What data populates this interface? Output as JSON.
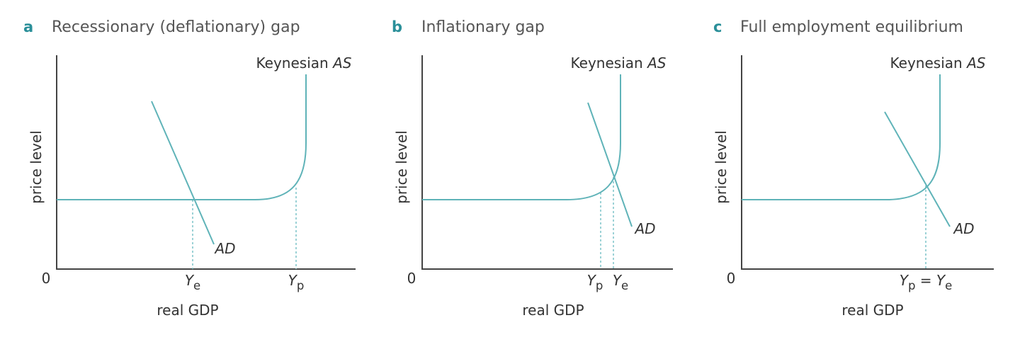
{
  "panels": [
    {
      "letter": "a",
      "title": "Recessionary (deflationary) gap",
      "y_axis_label": "price level",
      "x_axis_label": "real GDP",
      "origin_label": "0",
      "as_label": [
        {
          "text": "Keynesian ",
          "style": "normal"
        },
        {
          "text": "AS",
          "style": "italic"
        }
      ],
      "ad_label": [
        {
          "text": "AD",
          "style": "italic"
        }
      ],
      "x_tick_labels": [
        [
          {
            "text": "Y",
            "style": "italic"
          },
          {
            "text": "e",
            "style": "sub"
          }
        ],
        [
          {
            "text": "Y",
            "style": "italic"
          },
          {
            "text": "p",
            "style": "sub"
          }
        ]
      ]
    },
    {
      "letter": "b",
      "title": "Inflationary gap",
      "y_axis_label": "price level",
      "x_axis_label": "real GDP",
      "origin_label": "0",
      "as_label": [
        {
          "text": "Keynesian ",
          "style": "normal"
        },
        {
          "text": "AS",
          "style": "italic"
        }
      ],
      "ad_label": [
        {
          "text": "AD",
          "style": "italic"
        }
      ],
      "x_tick_labels": [
        [
          {
            "text": "Y",
            "style": "italic"
          },
          {
            "text": "p",
            "style": "sub"
          }
        ],
        [
          {
            "text": "Y",
            "style": "italic"
          },
          {
            "text": "e",
            "style": "sub"
          }
        ]
      ]
    },
    {
      "letter": "c",
      "title": "Full employment equilibrium",
      "y_axis_label": "price level",
      "x_axis_label": "real GDP",
      "origin_label": "0",
      "as_label": [
        {
          "text": "Keynesian ",
          "style": "normal"
        },
        {
          "text": "AS",
          "style": "italic"
        }
      ],
      "ad_label": [
        {
          "text": "AD",
          "style": "italic"
        }
      ],
      "x_tick_labels": [
        [
          {
            "text": "Y",
            "style": "italic"
          },
          {
            "text": "p",
            "style": "sub"
          },
          {
            "text": " = ",
            "style": "normal"
          },
          {
            "text": "Y",
            "style": "italic"
          },
          {
            "text": "e",
            "style": "sub"
          }
        ]
      ]
    }
  ]
}
